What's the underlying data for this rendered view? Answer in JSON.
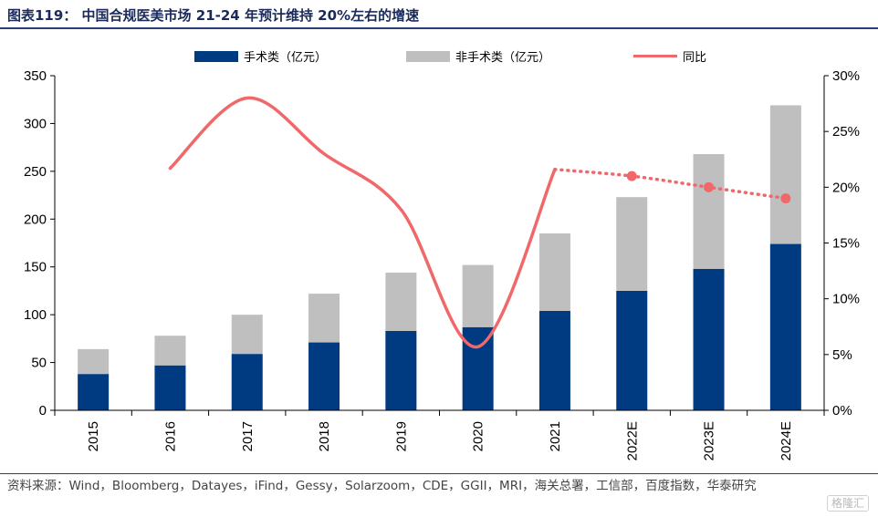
{
  "title": "图表119： 中国合规医美市场 21-24 年预计维持 20%左右的增速",
  "source": "资料来源：Wind，Bloomberg，Datayes，iFind，Gessy，Solarzoom，CDE，GGII，MRI，海关总署，工信部，百度指数，华泰研究",
  "watermark": "格隆汇",
  "colors": {
    "surgical": "#003a80",
    "non_surgical": "#bfbfbf",
    "yoy": "#f0686a",
    "title": "#1a2a5a"
  },
  "chart_data": {
    "type": "bar",
    "stacked": true,
    "categories": [
      "2015",
      "2016",
      "2017",
      "2018",
      "2019",
      "2020",
      "2021",
      "2022E",
      "2023E",
      "2024E"
    ],
    "series": [
      {
        "name": "手术类（亿元）",
        "type": "bar",
        "axis": "left",
        "values": [
          38,
          47,
          59,
          71,
          83,
          87,
          104,
          125,
          148,
          174
        ]
      },
      {
        "name": "非手术类（亿元）",
        "type": "bar",
        "axis": "left",
        "values": [
          26,
          31,
          41,
          51,
          61,
          65,
          81,
          98,
          120,
          145
        ]
      },
      {
        "name": "同比",
        "type": "line",
        "axis": "right",
        "unit": "%",
        "values": [
          null,
          21.7,
          28.0,
          23.0,
          18.0,
          5.7,
          21.6,
          21.0,
          20.0,
          19.0
        ],
        "forecast_from_index": 6
      }
    ],
    "y_left": {
      "min": 0,
      "max": 350,
      "ticks": [
        0,
        50,
        100,
        150,
        200,
        250,
        300,
        350
      ]
    },
    "y_right": {
      "min": 0,
      "max": 30,
      "ticks": [
        "0%",
        "5%",
        "10%",
        "15%",
        "20%",
        "25%",
        "30%"
      ]
    },
    "legend_position": "top",
    "grid": false
  }
}
